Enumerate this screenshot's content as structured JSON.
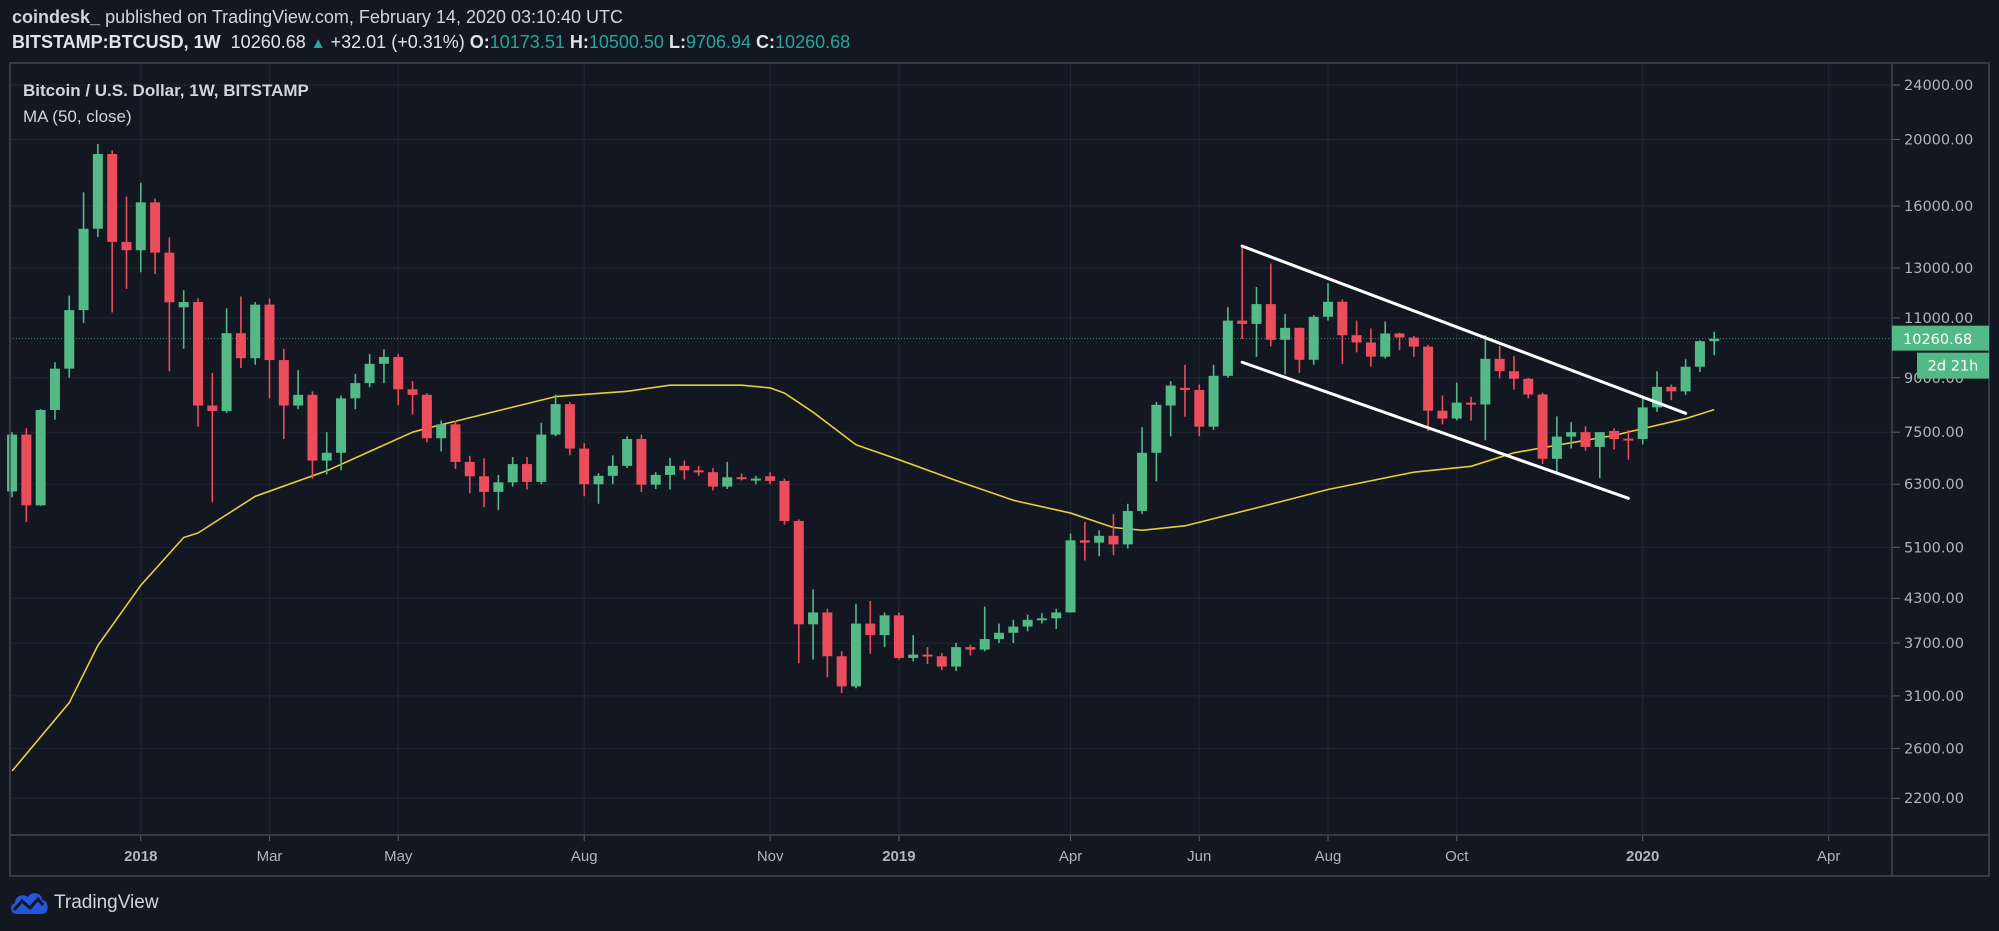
{
  "header": {
    "author": "coindesk_",
    "published": "published on TradingView.com, February 14, 2020 03:10:40 UTC",
    "symbol": "BITSTAMP:BTCUSD, 1W",
    "last": "10260.68",
    "change_arrow": "▲",
    "change": "+32.01 (+0.31%)",
    "o_label": "O:",
    "o": "10173.51",
    "h_label": "H:",
    "h": "10500.50",
    "l_label": "L:",
    "l": "9706.94",
    "c_label": "C:",
    "c": "10260.68"
  },
  "legend": {
    "title": "Bitcoin / U.S. Dollar, 1W, BITSTAMP",
    "indicator": "MA (50, close)"
  },
  "footer": {
    "brand": "TradingView",
    "icon": "tradingview-cloud-logo"
  },
  "colors": {
    "background": "#131722",
    "up": "#53b987",
    "down": "#eb4d5c",
    "ma": "#e3cf3a",
    "trendline": "#ffffff",
    "grid": "#232733",
    "text_accent": "#26a69a",
    "price_label": "#53b987"
  },
  "chart_data": {
    "type": "candlestick",
    "title": "Bitcoin / U.S. Dollar, 1W, BITSTAMP",
    "y_scale": "log",
    "y_range": [
      1945,
      25840
    ],
    "x_range": [
      "2017-10-29",
      "2020-05-07"
    ],
    "grid": true,
    "y_ticks": [
      "24000.00",
      "20000.00",
      "16000.00",
      "13000.00",
      "11000.00",
      "9000.00",
      "7500.00",
      "6300.00",
      "5100.00",
      "4300.00",
      "3700.00",
      "3100.00",
      "2600.00",
      "2200.00"
    ],
    "x_ticks": [
      {
        "label": "2018",
        "date": "2018-01-01",
        "bold": true
      },
      {
        "label": "Mar",
        "date": "2018-03-05"
      },
      {
        "label": "May",
        "date": "2018-05-07"
      },
      {
        "label": "Aug",
        "date": "2018-08-06"
      },
      {
        "label": "Nov",
        "date": "2018-11-05"
      },
      {
        "label": "2019",
        "date": "2019-01-07",
        "bold": true
      },
      {
        "label": "Apr",
        "date": "2019-04-01"
      },
      {
        "label": "Jun",
        "date": "2019-06-03"
      },
      {
        "label": "Aug",
        "date": "2019-08-05"
      },
      {
        "label": "Oct",
        "date": "2019-10-07"
      },
      {
        "label": "2020",
        "date": "2020-01-06",
        "bold": true
      },
      {
        "label": "Apr",
        "date": "2020-04-06"
      }
    ],
    "last_price": {
      "value": 10260.68,
      "label": "10260.68",
      "countdown": "2d 21h"
    },
    "ohlc_columns": [
      "date",
      "open",
      "high",
      "low",
      "close"
    ],
    "ohlc": [
      [
        "2017-10-30",
        6150,
        7500,
        6030,
        7440
      ],
      [
        "2017-11-06",
        7440,
        7600,
        5550,
        5870
      ],
      [
        "2017-11-13",
        5870,
        8100,
        5860,
        8080
      ],
      [
        "2017-11-20",
        8080,
        9480,
        7820,
        9280
      ],
      [
        "2017-11-27",
        9280,
        11850,
        9000,
        11290
      ],
      [
        "2017-12-04",
        11290,
        16750,
        10820,
        14830
      ],
      [
        "2017-12-11",
        14830,
        19700,
        14420,
        19050
      ],
      [
        "2017-12-18",
        19050,
        19290,
        11200,
        14190
      ],
      [
        "2017-12-25",
        14190,
        16520,
        12120,
        13800
      ],
      [
        "2018-01-01",
        13800,
        17300,
        12820,
        16200
      ],
      [
        "2018-01-08",
        16200,
        16400,
        12740,
        13690
      ],
      [
        "2018-01-15",
        13690,
        14400,
        9200,
        11590
      ],
      [
        "2018-01-22",
        11400,
        12070,
        9920,
        11600
      ],
      [
        "2018-01-29",
        11600,
        11750,
        7640,
        8200
      ],
      [
        "2018-02-05",
        8200,
        9150,
        5930,
        8050
      ],
      [
        "2018-02-12",
        8050,
        11360,
        8000,
        10450
      ],
      [
        "2018-02-19",
        10450,
        11820,
        9300,
        9610
      ],
      [
        "2018-02-26",
        9610,
        11600,
        9400,
        11500
      ],
      [
        "2018-03-05",
        11500,
        11740,
        8400,
        9550
      ],
      [
        "2018-03-12",
        9550,
        9920,
        7330,
        8200
      ],
      [
        "2018-03-19",
        8200,
        9230,
        8100,
        8500
      ],
      [
        "2018-03-26",
        8500,
        8600,
        6420,
        6820
      ],
      [
        "2018-04-02",
        6820,
        7500,
        6510,
        7000
      ],
      [
        "2018-04-09",
        7000,
        8480,
        6600,
        8400
      ],
      [
        "2018-04-16",
        8400,
        9120,
        8100,
        8840
      ],
      [
        "2018-04-23",
        8840,
        9750,
        8720,
        9430
      ],
      [
        "2018-04-30",
        9430,
        9900,
        8840,
        9650
      ],
      [
        "2018-05-07",
        9650,
        9750,
        8210,
        8660
      ],
      [
        "2018-05-14",
        8660,
        8900,
        7960,
        8500
      ],
      [
        "2018-05-21",
        8500,
        8550,
        7250,
        7350
      ],
      [
        "2018-05-28",
        7350,
        7800,
        7030,
        7700
      ],
      [
        "2018-06-04",
        7700,
        7800,
        6630,
        6790
      ],
      [
        "2018-06-11",
        6790,
        6930,
        6110,
        6470
      ],
      [
        "2018-06-18",
        6470,
        6870,
        5830,
        6140
      ],
      [
        "2018-06-25",
        6140,
        6500,
        5780,
        6340
      ],
      [
        "2018-07-02",
        6340,
        6900,
        6250,
        6740
      ],
      [
        "2018-07-09",
        6740,
        6900,
        6190,
        6350
      ],
      [
        "2018-07-16",
        6350,
        7740,
        6300,
        7440
      ],
      [
        "2018-07-23",
        7440,
        8510,
        7400,
        8240
      ],
      [
        "2018-07-30",
        8240,
        8300,
        6940,
        7100
      ],
      [
        "2018-08-06",
        7100,
        7230,
        6050,
        6300
      ],
      [
        "2018-08-13",
        6300,
        6540,
        5900,
        6480
      ],
      [
        "2018-08-20",
        6480,
        6940,
        6300,
        6700
      ],
      [
        "2018-08-27",
        6700,
        7400,
        6650,
        7330
      ],
      [
        "2018-09-03",
        7330,
        7440,
        6140,
        6290
      ],
      [
        "2018-09-10",
        6290,
        6560,
        6200,
        6500
      ],
      [
        "2018-09-17",
        6500,
        6880,
        6190,
        6700
      ],
      [
        "2018-09-24",
        6700,
        6820,
        6400,
        6600
      ],
      [
        "2018-10-01",
        6600,
        6700,
        6480,
        6560
      ],
      [
        "2018-10-08",
        6560,
        6650,
        6170,
        6250
      ],
      [
        "2018-10-15",
        6250,
        6790,
        6200,
        6450
      ],
      [
        "2018-10-22",
        6450,
        6530,
        6380,
        6420
      ],
      [
        "2018-10-29",
        6380,
        6480,
        6300,
        6420
      ],
      [
        "2018-11-05",
        6470,
        6560,
        6300,
        6370
      ],
      [
        "2018-11-12",
        6370,
        6420,
        5500,
        5570
      ],
      [
        "2018-11-19",
        5570,
        5600,
        3460,
        3940
      ],
      [
        "2018-11-26",
        3940,
        4430,
        3500,
        4100
      ],
      [
        "2018-12-03",
        4100,
        4150,
        3300,
        3540
      ],
      [
        "2018-12-10",
        3540,
        3600,
        3130,
        3200
      ],
      [
        "2018-12-17",
        3200,
        4220,
        3180,
        3950
      ],
      [
        "2018-12-24",
        3950,
        4260,
        3570,
        3800
      ],
      [
        "2018-12-31",
        3800,
        4100,
        3650,
        4060
      ],
      [
        "2019-01-07",
        4060,
        4100,
        3500,
        3520
      ],
      [
        "2019-01-14",
        3520,
        3800,
        3480,
        3560
      ],
      [
        "2019-01-21",
        3560,
        3650,
        3450,
        3540
      ],
      [
        "2019-01-28",
        3540,
        3580,
        3380,
        3420
      ],
      [
        "2019-02-04",
        3420,
        3700,
        3370,
        3650
      ],
      [
        "2019-02-11",
        3650,
        3680,
        3550,
        3620
      ],
      [
        "2019-02-18",
        3620,
        4180,
        3600,
        3750
      ],
      [
        "2019-02-25",
        3750,
        3950,
        3700,
        3830
      ],
      [
        "2019-03-04",
        3830,
        4000,
        3700,
        3910
      ],
      [
        "2019-03-11",
        3910,
        4070,
        3850,
        4000
      ],
      [
        "2019-03-18",
        4000,
        4090,
        3950,
        4020
      ],
      [
        "2019-03-25",
        4020,
        4150,
        3880,
        4100
      ],
      [
        "2019-04-01",
        4100,
        5340,
        4100,
        5220
      ],
      [
        "2019-04-08",
        5220,
        5550,
        4880,
        5180
      ],
      [
        "2019-04-15",
        5180,
        5400,
        4950,
        5300
      ],
      [
        "2019-04-22",
        5300,
        5700,
        4970,
        5150
      ],
      [
        "2019-04-29",
        5150,
        5900,
        5080,
        5760
      ],
      [
        "2019-05-06",
        5760,
        7630,
        5700,
        7000
      ],
      [
        "2019-05-13",
        7000,
        8300,
        6360,
        8220
      ],
      [
        "2019-05-20",
        8200,
        8900,
        7400,
        8770
      ],
      [
        "2019-05-27",
        8700,
        9400,
        7900,
        8640
      ],
      [
        "2019-06-03",
        8640,
        8800,
        7400,
        7640
      ],
      [
        "2019-06-10",
        7640,
        9400,
        7560,
        9060
      ],
      [
        "2019-06-17",
        9060,
        11400,
        9000,
        10900
      ],
      [
        "2019-06-24",
        10900,
        14000,
        10250,
        10780
      ],
      [
        "2019-07-01",
        10780,
        12200,
        9650,
        11520
      ],
      [
        "2019-07-08",
        11520,
        13200,
        10000,
        10220
      ],
      [
        "2019-07-15",
        10220,
        11140,
        9100,
        10640
      ],
      [
        "2019-07-22",
        10640,
        10650,
        9150,
        9560
      ],
      [
        "2019-07-29",
        9560,
        11100,
        9400,
        11040
      ],
      [
        "2019-08-05",
        11040,
        12350,
        10900,
        11610
      ],
      [
        "2019-08-12",
        11610,
        11700,
        9430,
        10380
      ],
      [
        "2019-08-19",
        10380,
        10900,
        9800,
        10130
      ],
      [
        "2019-08-26",
        10130,
        10620,
        9340,
        9660
      ],
      [
        "2019-09-02",
        9660,
        10870,
        9600,
        10440
      ],
      [
        "2019-09-09",
        10440,
        10470,
        9870,
        10300
      ],
      [
        "2019-09-16",
        10300,
        10350,
        9650,
        9990
      ],
      [
        "2019-09-23",
        9990,
        10050,
        7530,
        8060
      ],
      [
        "2019-09-30",
        8060,
        8480,
        7700,
        7850
      ],
      [
        "2019-10-07",
        7850,
        8850,
        7800,
        8280
      ],
      [
        "2019-10-14",
        8280,
        8440,
        7800,
        8230
      ],
      [
        "2019-10-21",
        8230,
        10380,
        7300,
        9590
      ],
      [
        "2019-10-28",
        9590,
        10010,
        8980,
        9200
      ],
      [
        "2019-11-04",
        9200,
        9680,
        8650,
        8970
      ],
      [
        "2019-11-11",
        8970,
        9000,
        8400,
        8510
      ],
      [
        "2019-11-18",
        8510,
        8560,
        6740,
        6860
      ],
      [
        "2019-11-25",
        6860,
        7910,
        6520,
        7390
      ],
      [
        "2019-12-02",
        7390,
        7760,
        7100,
        7500
      ],
      [
        "2019-12-09",
        7500,
        7650,
        7050,
        7140
      ],
      [
        "2019-12-16",
        7140,
        7500,
        6430,
        7500
      ],
      [
        "2019-12-23",
        7530,
        7600,
        7080,
        7330
      ],
      [
        "2019-12-30",
        7340,
        7550,
        6840,
        7330
      ],
      [
        "2020-01-06",
        7330,
        8450,
        7200,
        8150
      ],
      [
        "2020-01-13",
        8150,
        9200,
        8030,
        8730
      ],
      [
        "2020-01-20",
        8730,
        8800,
        8350,
        8600
      ],
      [
        "2020-01-27",
        8600,
        9580,
        8500,
        9340
      ],
      [
        "2020-02-03",
        9340,
        10200,
        9180,
        10173.51
      ],
      [
        "2020-02-10",
        10173.51,
        10500.5,
        9706.94,
        10260.68
      ]
    ],
    "ma50": [
      [
        "2017-10-30",
        2410
      ],
      [
        "2017-11-27",
        3030
      ],
      [
        "2017-12-11",
        3670
      ],
      [
        "2018-01-01",
        4490
      ],
      [
        "2018-01-22",
        5270
      ],
      [
        "2018-01-29",
        5350
      ],
      [
        "2018-02-26",
        6050
      ],
      [
        "2018-04-02",
        6590
      ],
      [
        "2018-05-14",
        7500
      ],
      [
        "2018-05-21",
        7600
      ],
      [
        "2018-07-23",
        8450
      ],
      [
        "2018-08-27",
        8600
      ],
      [
        "2018-09-17",
        8780
      ],
      [
        "2018-10-22",
        8780
      ],
      [
        "2018-11-05",
        8700
      ],
      [
        "2018-11-12",
        8550
      ],
      [
        "2018-11-26",
        8020
      ],
      [
        "2018-12-17",
        7190
      ],
      [
        "2019-01-07",
        6840
      ],
      [
        "2019-02-04",
        6380
      ],
      [
        "2019-03-04",
        5970
      ],
      [
        "2019-04-01",
        5720
      ],
      [
        "2019-04-22",
        5450
      ],
      [
        "2019-05-06",
        5400
      ],
      [
        "2019-05-27",
        5480
      ],
      [
        "2019-07-01",
        5820
      ],
      [
        "2019-08-05",
        6190
      ],
      [
        "2019-09-16",
        6560
      ],
      [
        "2019-10-14",
        6690
      ],
      [
        "2019-11-04",
        7000
      ],
      [
        "2019-11-18",
        7120
      ],
      [
        "2019-12-23",
        7420
      ],
      [
        "2020-01-27",
        7850
      ],
      [
        "2020-02-10",
        8090
      ]
    ],
    "trendlines": [
      {
        "name": "channel-upper",
        "from": [
          "2019-06-24",
          13990
        ],
        "to": [
          "2020-01-27",
          7990
        ]
      },
      {
        "name": "channel-lower",
        "from": [
          "2019-06-24",
          9480
        ],
        "to": [
          "2019-12-30",
          6010
        ]
      }
    ]
  }
}
